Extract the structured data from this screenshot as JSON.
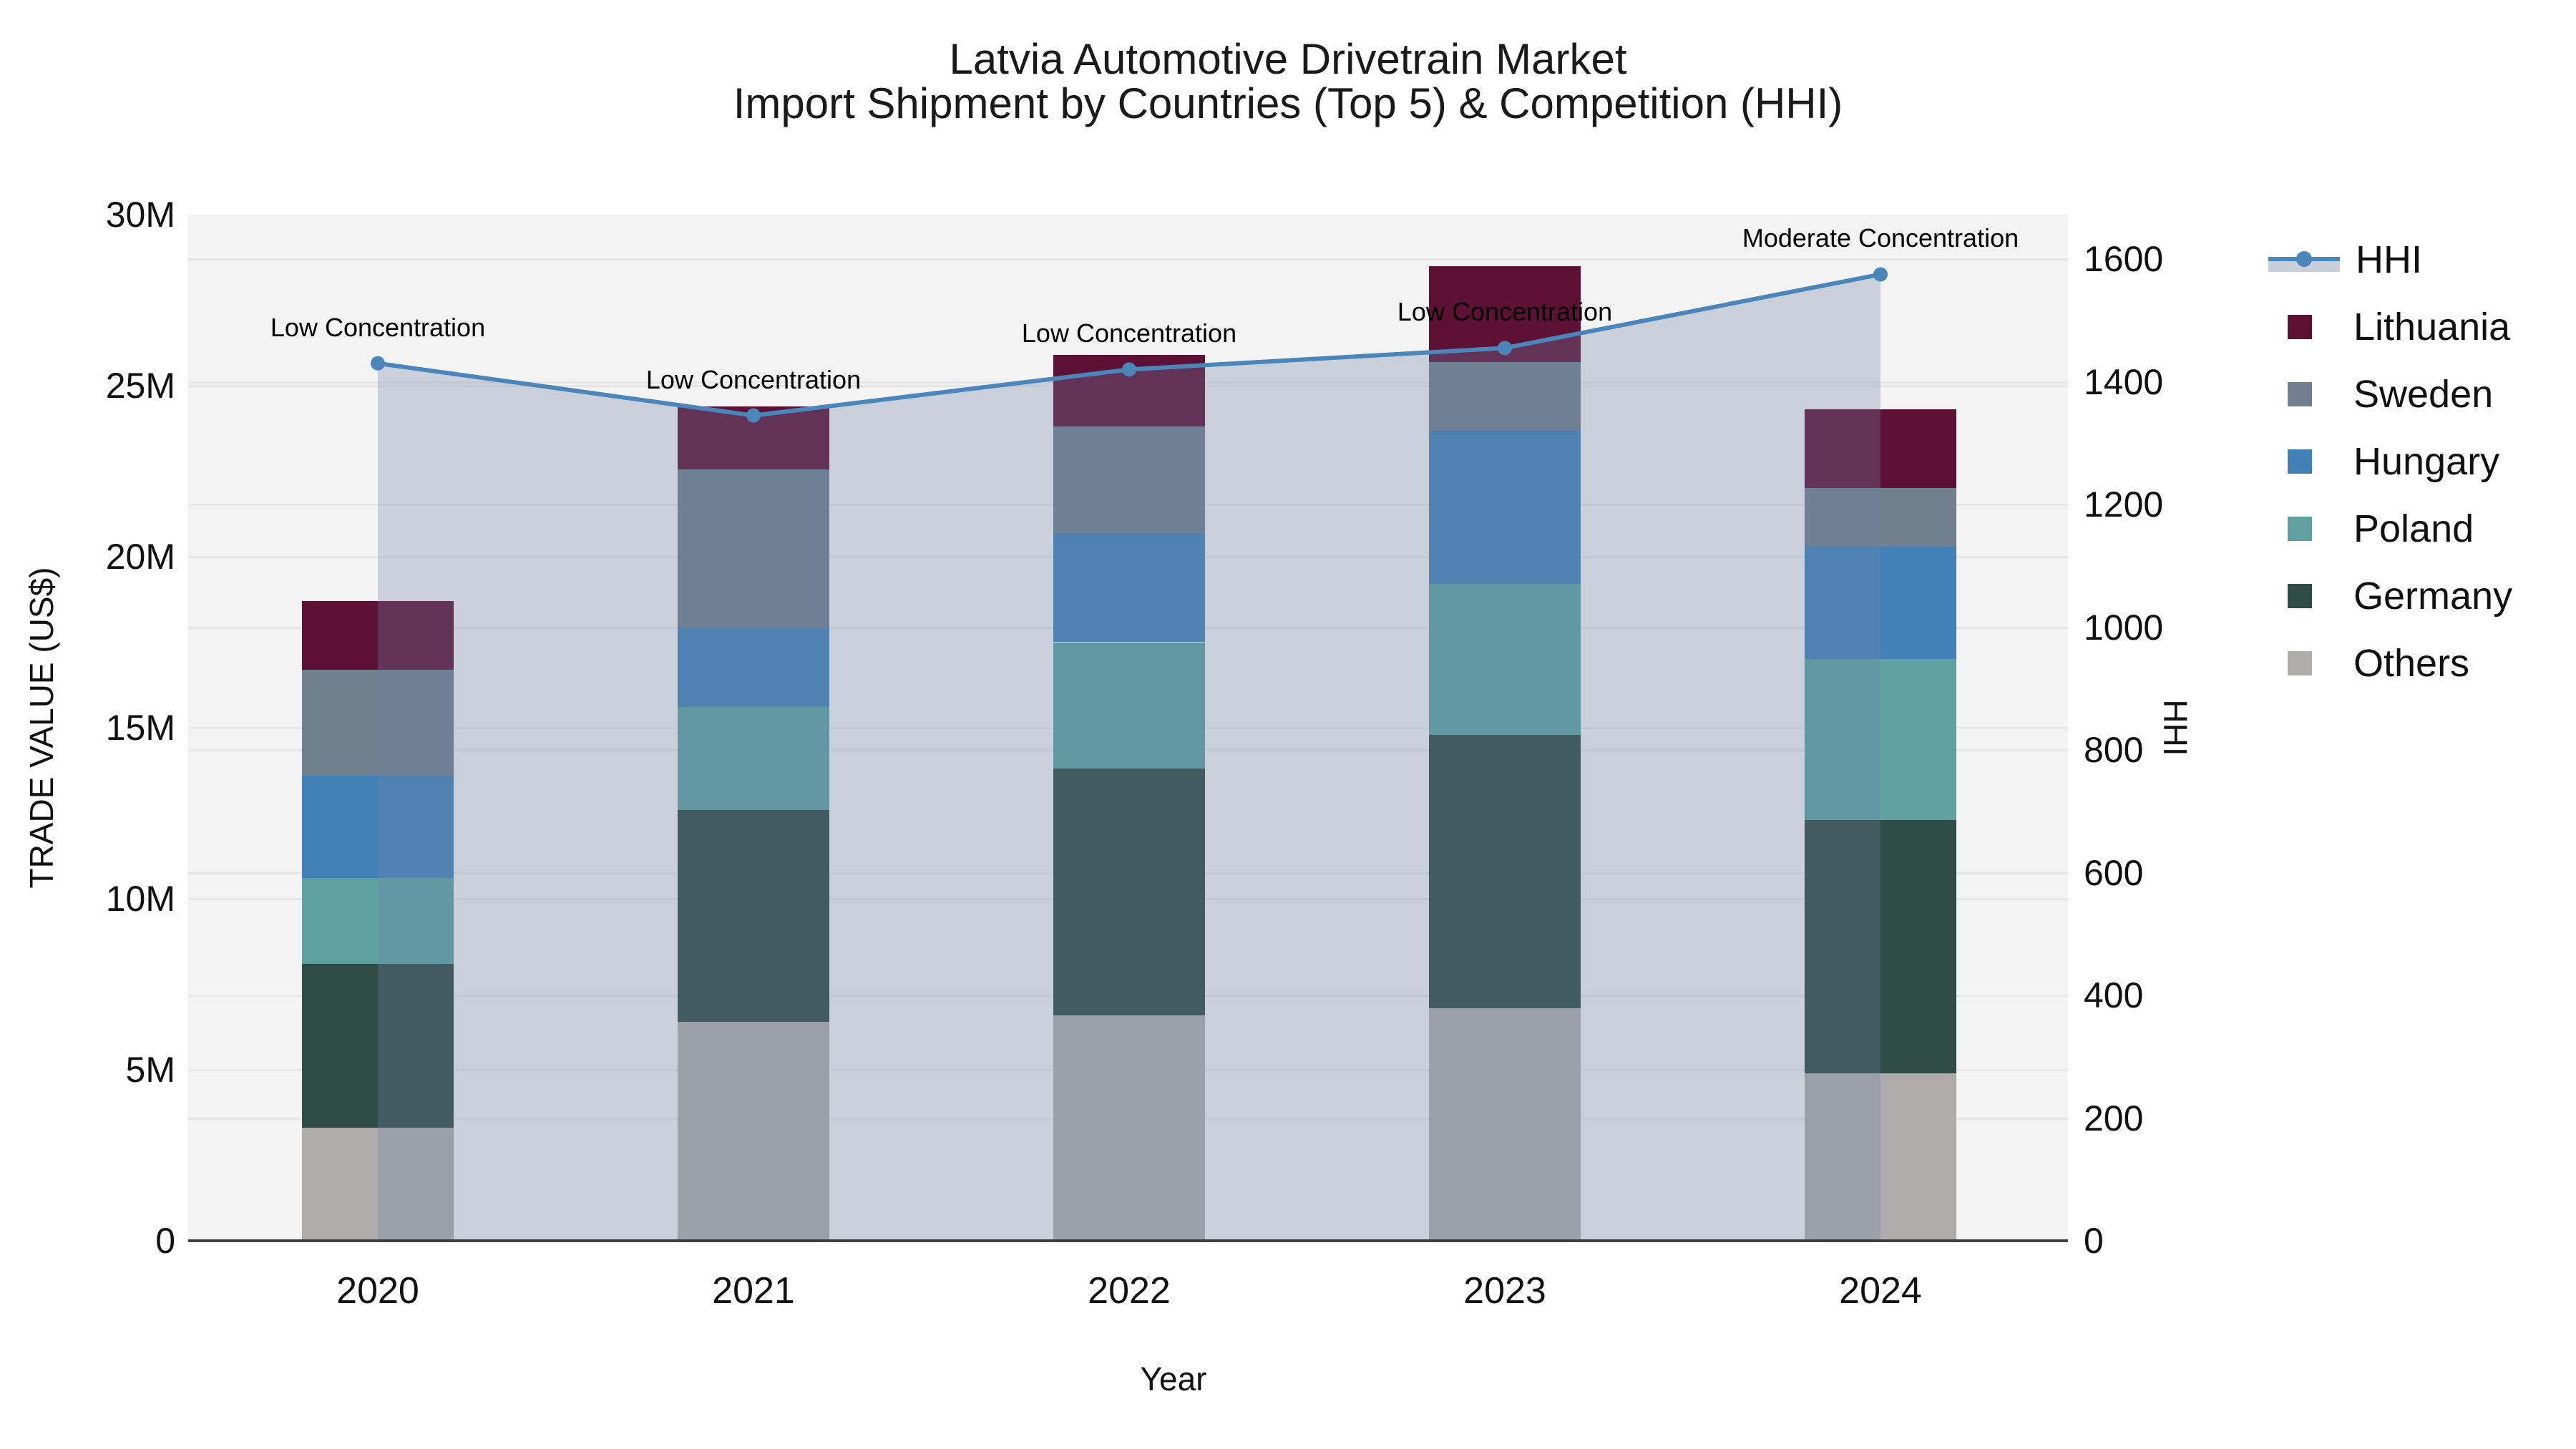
{
  "title": {
    "line1": "Latvia Automotive Drivetrain Market",
    "line2": "Import Shipment by Countries (Top 5) & Competition (HHI)"
  },
  "axes": {
    "y_left_title": "TRADE VALUE (US$)",
    "y_right_title": "HHI",
    "x_title": "Year",
    "y_left_ticks": [
      "0",
      "5M",
      "10M",
      "15M",
      "20M",
      "25M",
      "30M"
    ],
    "y_right_ticks": [
      "0",
      "200",
      "400",
      "600",
      "800",
      "1000",
      "1200",
      "1400",
      "1600"
    ],
    "x_ticks": [
      "2020",
      "2021",
      "2022",
      "2023",
      "2024"
    ]
  },
  "legend": {
    "items": [
      {
        "label": "HHI",
        "type": "line",
        "color": "#4a86ba",
        "fill": "#c9cfda"
      },
      {
        "label": "Lithuania",
        "type": "box",
        "color": "#5d1135"
      },
      {
        "label": "Sweden",
        "type": "box",
        "color": "#70808f"
      },
      {
        "label": "Hungary",
        "type": "box",
        "color": "#4281b8"
      },
      {
        "label": "Poland",
        "type": "box",
        "color": "#5fa1a1"
      },
      {
        "label": "Germany",
        "type": "box",
        "color": "#2e4b45"
      },
      {
        "label": "Others",
        "type": "box",
        "color": "#aeadab"
      }
    ]
  },
  "annotations": [
    {
      "year": "2020",
      "text": "Low Concentration"
    },
    {
      "year": "2021",
      "text": "Low Concentration"
    },
    {
      "year": "2022",
      "text": "Low Concentration"
    },
    {
      "year": "2023",
      "text": "Low Concentration"
    },
    {
      "year": "2024",
      "text": "Moderate Concentration"
    }
  ],
  "chart_data": {
    "type": "combo_stacked_bar_line",
    "categories": [
      "2020",
      "2021",
      "2022",
      "2023",
      "2024"
    ],
    "bar_unit": "million US$",
    "bar_stack_order_bottom_to_top": [
      "Others",
      "Germany",
      "Poland",
      "Hungary",
      "Sweden",
      "Lithuania"
    ],
    "series": [
      {
        "name": "Others",
        "color": "#aeadab",
        "values": [
          3.3,
          6.4,
          6.6,
          6.8,
          4.9
        ]
      },
      {
        "name": "Germany",
        "color": "#2e4b45",
        "values": [
          4.8,
          6.2,
          7.2,
          8.0,
          7.4
        ]
      },
      {
        "name": "Poland",
        "color": "#5fa1a1",
        "values": [
          2.5,
          3.0,
          3.7,
          4.4,
          4.7
        ]
      },
      {
        "name": "Hungary",
        "color": "#4281b8",
        "values": [
          3.0,
          2.3,
          3.2,
          4.5,
          3.3
        ]
      },
      {
        "name": "Sweden",
        "color": "#70808f",
        "values": [
          3.1,
          4.65,
          3.1,
          2.0,
          1.7
        ]
      },
      {
        "name": "Lithuania",
        "color": "#5d1135",
        "values": [
          2.0,
          1.85,
          2.1,
          2.8,
          2.3
        ]
      }
    ],
    "bar_totals": [
      18.7,
      24.4,
      25.9,
      28.5,
      24.3
    ],
    "line_series": {
      "name": "HHI",
      "axis": "right",
      "color": "#4a86ba",
      "area_fill": "rgba(110,128,162,0.31)",
      "values": [
        1430,
        1345,
        1420,
        1455,
        1575
      ]
    },
    "title": "Latvia Automotive Drivetrain Market — Import Shipment by Countries (Top 5) & Competition (HHI)",
    "xlabel": "Year",
    "ylabel_left": "TRADE VALUE (US$)",
    "ylabel_right": "HHI",
    "ylim_left": [
      0,
      30000000
    ],
    "ylim_right": [
      0,
      1600
    ],
    "grid": true,
    "legend_position": "right"
  }
}
